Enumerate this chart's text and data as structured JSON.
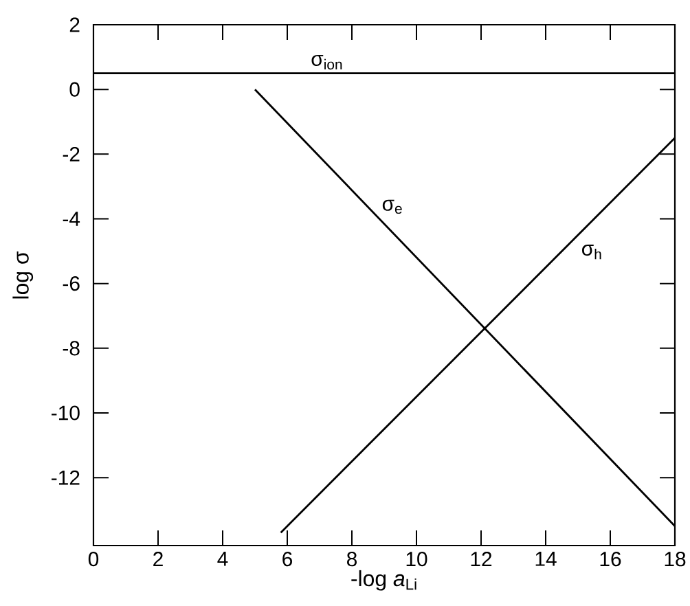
{
  "chart_data": {
    "type": "line",
    "xlabel": "-log *a*$_{Li}$",
    "ylabel": "log σ",
    "xlim": [
      0,
      18
    ],
    "ylim": [
      -14.1,
      2
    ],
    "xticks": [
      0,
      2,
      4,
      6,
      8,
      10,
      12,
      14,
      16,
      18
    ],
    "yticks": [
      -12,
      -10,
      -8,
      -6,
      -4,
      -2,
      0,
      2
    ],
    "marker": "none",
    "line_style": "solid",
    "series": [
      {
        "name": "σ$_{ion}$",
        "color": "#000000",
        "x": [
          0,
          18
        ],
        "values": [
          0.5,
          0.5
        ]
      },
      {
        "name": "σ$_{e}$",
        "color": "#000000",
        "x": [
          5,
          18
        ],
        "values": [
          0,
          -13.5
        ]
      },
      {
        "name": "σ$_{h}$",
        "color": "#000000",
        "x": [
          5.8,
          18
        ],
        "values": [
          -13.7,
          -1.5
        ]
      }
    ]
  }
}
